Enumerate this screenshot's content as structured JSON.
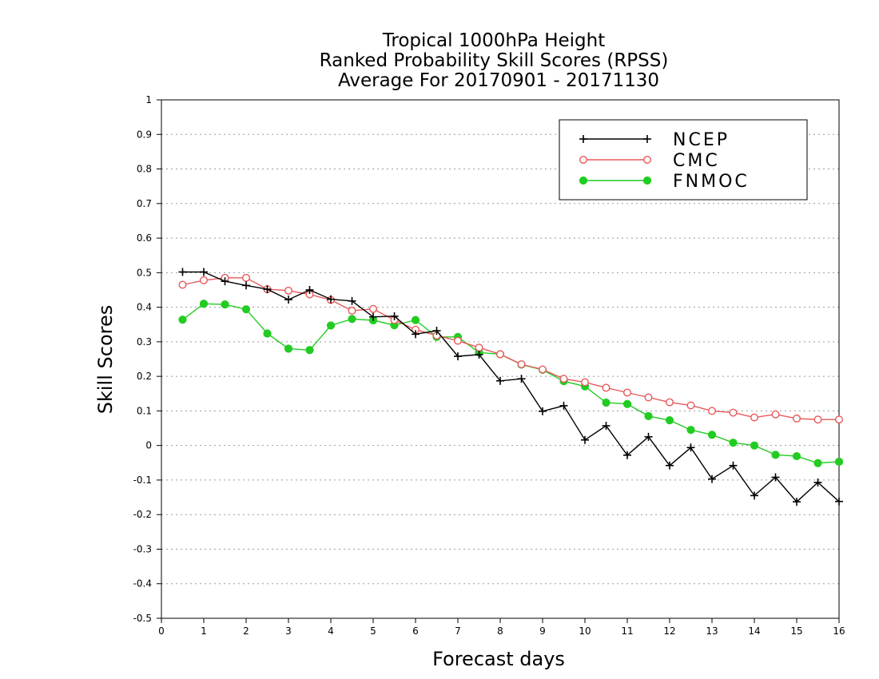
{
  "chart_data": {
    "type": "line",
    "title": [
      "Tropical 1000hPa Height",
      "Ranked Probability Skill Scores (RPSS)",
      "Average For 20170901 - 20171130"
    ],
    "xlabel": "Forecast days",
    "ylabel": "Skill Scores",
    "xlim": [
      0,
      16
    ],
    "ylim": [
      -0.5,
      1
    ],
    "x_ticks": [
      "0",
      "1",
      "2",
      "3",
      "4",
      "5",
      "6",
      "7",
      "8",
      "9",
      "10",
      "11",
      "12",
      "13",
      "14",
      "15",
      "16"
    ],
    "y_ticks": [
      "1",
      "0.9",
      "0.8",
      "0.7",
      "0.6",
      "0.5",
      "0.4",
      "0.3",
      "0.2",
      "0.1",
      "0",
      "-0.1",
      "-0.2",
      "-0.3",
      "-0.4",
      "-0.5"
    ],
    "grid": "horizontal dotted",
    "legend_position": "top-right",
    "x": [
      0.5,
      1,
      1.5,
      2,
      2.5,
      3,
      3.5,
      4,
      4.5,
      5,
      5.5,
      6,
      6.5,
      7,
      7.5,
      8,
      8.5,
      9,
      9.5,
      10,
      10.5,
      11,
      11.5,
      12,
      12.5,
      13,
      13.5,
      14,
      14.5,
      15,
      15.5,
      16
    ],
    "series": [
      {
        "name": "NCEP",
        "color": "#000000",
        "marker": "plus",
        "values": [
          0.502,
          0.502,
          0.475,
          0.463,
          0.452,
          0.422,
          0.45,
          0.423,
          0.418,
          0.372,
          0.374,
          0.322,
          0.332,
          0.258,
          0.263,
          0.187,
          0.193,
          0.099,
          0.115,
          0.016,
          0.057,
          -0.028,
          0.025,
          -0.058,
          -0.006,
          -0.097,
          -0.058,
          -0.145,
          -0.092,
          -0.163,
          -0.107,
          -0.162
        ]
      },
      {
        "name": "CMC",
        "color": "#e8585a",
        "marker": "open-circle",
        "values": [
          0.465,
          0.478,
          0.485,
          0.485,
          0.452,
          0.448,
          0.437,
          0.421,
          0.39,
          0.395,
          0.363,
          0.335,
          0.318,
          0.303,
          0.283,
          0.264,
          0.235,
          0.22,
          0.193,
          0.183,
          0.167,
          0.153,
          0.139,
          0.125,
          0.116,
          0.1,
          0.095,
          0.081,
          0.09,
          0.078,
          0.075,
          0.075
        ]
      },
      {
        "name": "FNMOC",
        "color": "#22cc22",
        "marker": "filled-circle",
        "values": [
          0.364,
          0.41,
          0.408,
          0.394,
          0.324,
          0.28,
          0.276,
          0.347,
          0.366,
          0.362,
          0.348,
          0.363,
          0.314,
          0.314,
          0.269,
          0.264,
          0.234,
          0.219,
          0.186,
          0.171,
          0.124,
          0.12,
          0.085,
          0.073,
          0.045,
          0.031,
          0.008,
          0.0,
          -0.027,
          -0.031,
          -0.051,
          -0.047
        ]
      }
    ]
  }
}
